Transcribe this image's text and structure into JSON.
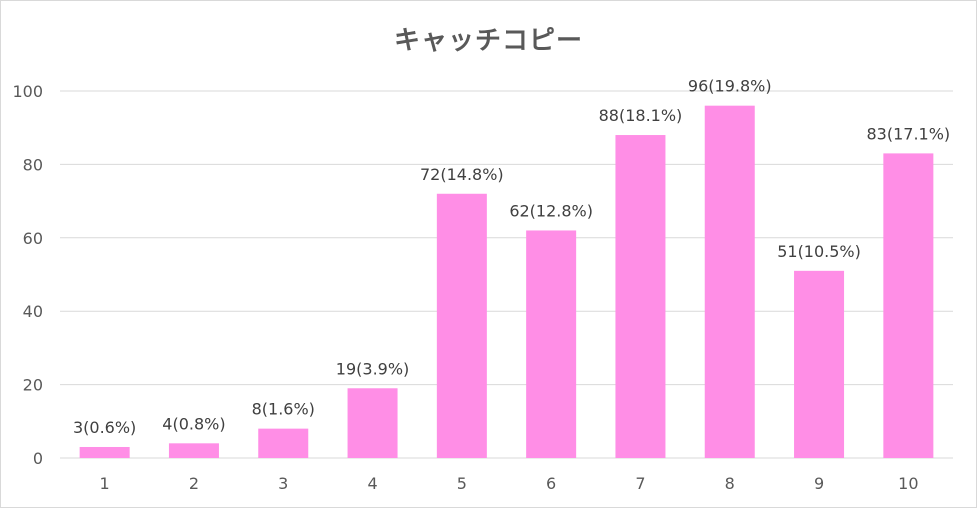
{
  "chart_data": {
    "type": "bar",
    "title": "キャッチコピー",
    "xlabel": "",
    "ylabel": "",
    "categories": [
      "1",
      "2",
      "3",
      "4",
      "5",
      "6",
      "7",
      "8",
      "9",
      "10"
    ],
    "values": [
      3,
      4,
      8,
      19,
      72,
      62,
      88,
      96,
      51,
      83
    ],
    "data_labels": [
      "3(0.6%)",
      "4(0.8%)",
      "8(1.6%)",
      "19(3.9%)",
      "72(14.8%)",
      "62(12.8%)",
      "88(18.1%)",
      "96(19.8%)",
      "51(10.5%)",
      "83(17.1%)"
    ],
    "ylim": [
      0,
      100
    ],
    "yticks": [
      0,
      20,
      40,
      60,
      80,
      100
    ],
    "grid": true,
    "legend": "none",
    "bar_color": "#ff8ee6",
    "grid_color": "#d9d9d9"
  }
}
